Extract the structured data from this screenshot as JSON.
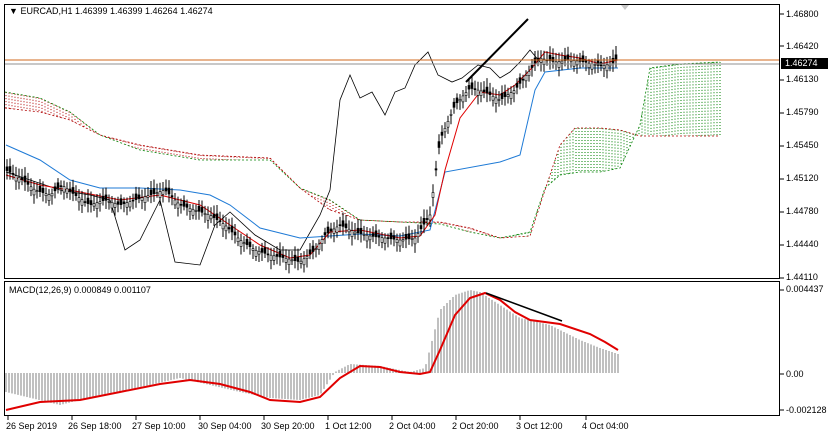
{
  "header": {
    "symbol": "EURCAD,H1",
    "ohlc": "1.46399 1.46399 1.46264 1.46274",
    "menu_icon": "triangle-down-icon"
  },
  "price_axis": {
    "labels": [
      "1.46800",
      "1.46420",
      "1.46274",
      "1.46130",
      "1.45790",
      "1.45450",
      "1.45120",
      "1.44780",
      "1.44440",
      "1.44110"
    ],
    "current_price": "1.46274"
  },
  "macd": {
    "label": "MACD(12,26,9) 0.000849 0.001107",
    "axis_labels": [
      "0.004437",
      "0.00",
      "-0.002128"
    ]
  },
  "time_axis": {
    "labels": [
      "26 Sep 2019",
      "26 Sep 18:00",
      "27 Sep 10:00",
      "30 Sep 04:00",
      "30 Sep 20:00",
      "1 Oct 12:00",
      "2 Oct 04:00",
      "2 Oct 20:00",
      "3 Oct 12:00",
      "4 Oct 04:00"
    ]
  },
  "colors": {
    "bull_cloud": "#008000",
    "bear_cloud": "#b00000",
    "tenkan": "#e00000",
    "kijun": "#1e7ad6",
    "chikou": "#000000",
    "macd_hist": "#c0c0c0",
    "macd_signal": "#e00000",
    "price_line": "#d2691e"
  }
}
